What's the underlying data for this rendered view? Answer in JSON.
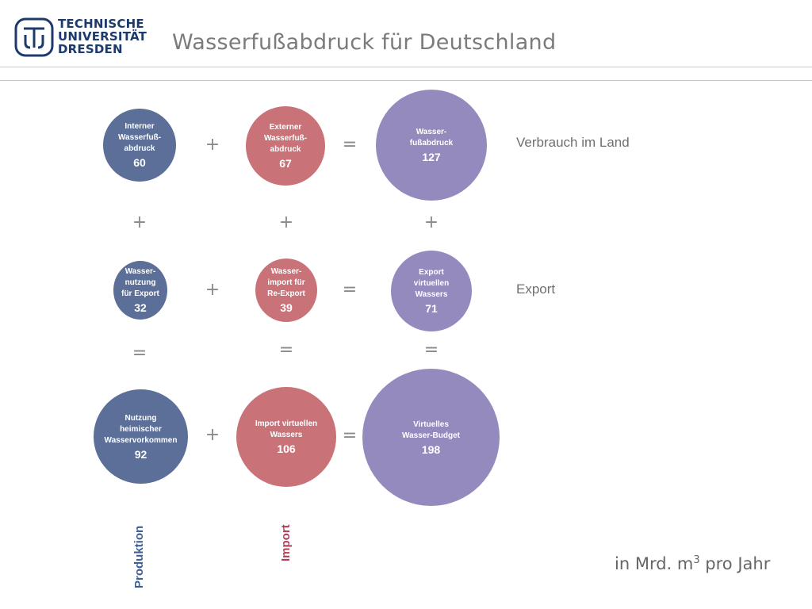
{
  "header": {
    "logo_lines": [
      "TECHNISCHE",
      "UNIVERSITÄT",
      "DRESDEN"
    ],
    "title": "Wasserfußabdruck für Deutschland"
  },
  "row_labels": {
    "consumption": "Verbrauch im Land",
    "export": "Export"
  },
  "column_labels": {
    "production": "Produktion",
    "import": "Import"
  },
  "circles": {
    "internal": {
      "label": "Interner\nWasserfuß-\nabdruck",
      "value": "60"
    },
    "external": {
      "label": "Externer\nWasserfuß-\nabdruck",
      "value": "67"
    },
    "footprint": {
      "label": "Wasser-\nfußabdruck",
      "value": "127"
    },
    "export_use": {
      "label": "Wasser-\nnutzung\nfür Export",
      "value": "32"
    },
    "reexport": {
      "label": "Wasser-\nimport für\nRe-Export",
      "value": "39"
    },
    "virtual_export": {
      "label": "Export\nvirtuellen\nWassers",
      "value": "71"
    },
    "domestic": {
      "label": "Nutzung\nheimischer\nWasservorkommen",
      "value": "92"
    },
    "virtual_import": {
      "label": "Import virtuellen\nWassers",
      "value": "106"
    },
    "budget": {
      "label": "Virtuelles\nWasser-Budget",
      "value": "198"
    }
  },
  "operators": {
    "plus": "+",
    "equals": "="
  },
  "unit": {
    "prefix": "in Mrd. m",
    "exponent": "3",
    "suffix": " pro Jahr"
  },
  "colors": {
    "production": "#5b6f98",
    "import": "#c97379",
    "total": "#958abd"
  }
}
